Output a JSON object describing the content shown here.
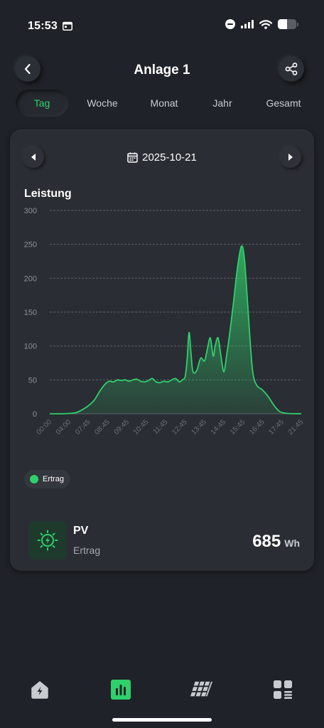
{
  "status_bar": {
    "time": "15:53",
    "battery_level": 0.5
  },
  "header": {
    "title": "Anlage 1",
    "back_icon": "chevron-left-icon",
    "share_icon": "share-icon"
  },
  "tabs": [
    {
      "label": "Tag",
      "active": true
    },
    {
      "label": "Woche",
      "active": false
    },
    {
      "label": "Monat",
      "active": false
    },
    {
      "label": "Jahr",
      "active": false
    },
    {
      "label": "Gesamt",
      "active": false
    }
  ],
  "date_nav": {
    "date": "2025-10-21",
    "prev_icon": "triangle-left-icon",
    "next_icon": "triangle-right-icon",
    "calendar_icon": "calendar-icon"
  },
  "chart_title": "Leistung",
  "chart_data": {
    "type": "area",
    "title": "Leistung",
    "xlabel": "",
    "ylabel": "",
    "ylim": [
      0,
      300
    ],
    "yticks": [
      0,
      50,
      100,
      150,
      200,
      250,
      300
    ],
    "xticks": [
      "00:00",
      "04:00",
      "07:45",
      "08:45",
      "09:45",
      "10:45",
      "11:45",
      "12:45",
      "13:45",
      "14:45",
      "15:45",
      "16:45",
      "17:45",
      "21:45"
    ],
    "grid": true,
    "legend_position": "bottom-left",
    "series": [
      {
        "name": "Ertrag",
        "color": "#2fd06b",
        "points": [
          [
            0,
            0
          ],
          [
            0.6,
            0
          ],
          [
            1.0,
            0.5
          ],
          [
            1.4,
            2
          ],
          [
            1.8,
            8
          ],
          [
            2.0,
            12
          ],
          [
            2.3,
            20
          ],
          [
            2.6,
            34
          ],
          [
            2.9,
            45
          ],
          [
            3.1,
            48
          ],
          [
            3.3,
            47
          ],
          [
            3.5,
            50
          ],
          [
            3.7,
            49
          ],
          [
            3.9,
            50
          ],
          [
            4.1,
            48
          ],
          [
            4.3,
            50
          ],
          [
            4.5,
            51
          ],
          [
            4.7,
            48
          ],
          [
            4.9,
            47
          ],
          [
            5.1,
            49
          ],
          [
            5.3,
            52
          ],
          [
            5.5,
            47
          ],
          [
            5.7,
            46
          ],
          [
            5.9,
            48
          ],
          [
            6.1,
            47
          ],
          [
            6.3,
            50
          ],
          [
            6.5,
            52
          ],
          [
            6.7,
            47
          ],
          [
            6.85,
            50
          ],
          [
            7.0,
            55
          ],
          [
            7.1,
            80
          ],
          [
            7.2,
            120
          ],
          [
            7.3,
            90
          ],
          [
            7.4,
            62
          ],
          [
            7.6,
            64
          ],
          [
            7.8,
            82
          ],
          [
            8.0,
            78
          ],
          [
            8.15,
            96
          ],
          [
            8.3,
            112
          ],
          [
            8.45,
            85
          ],
          [
            8.55,
            100
          ],
          [
            8.7,
            112
          ],
          [
            8.85,
            85
          ],
          [
            9.0,
            62
          ],
          [
            9.15,
            88
          ],
          [
            9.3,
            118
          ],
          [
            9.5,
            165
          ],
          [
            9.7,
            215
          ],
          [
            9.9,
            247
          ],
          [
            10.05,
            232
          ],
          [
            10.2,
            175
          ],
          [
            10.35,
            110
          ],
          [
            10.5,
            60
          ],
          [
            10.7,
            42
          ],
          [
            11.0,
            35
          ],
          [
            11.3,
            25
          ],
          [
            11.6,
            12
          ],
          [
            11.9,
            3
          ],
          [
            12.3,
            0.5
          ],
          [
            13.0,
            0
          ]
        ]
      }
    ]
  },
  "legend": {
    "label": "Ertrag"
  },
  "summary": {
    "name": "PV",
    "sub": "Ertrag",
    "value": "685",
    "unit": "Wh",
    "icon": "solar-sun-bolt-icon"
  },
  "bottom_nav": [
    {
      "icon": "home-bolt-icon",
      "active": false
    },
    {
      "icon": "bar-chart-icon",
      "active": true
    },
    {
      "icon": "solar-panel-icon",
      "active": false
    },
    {
      "icon": "apps-grid-icon",
      "active": false
    }
  ],
  "colors": {
    "background": "#1f2228",
    "card": "#2a2d33",
    "accent": "#2fd06b",
    "text_muted": "#a4a8ae"
  }
}
